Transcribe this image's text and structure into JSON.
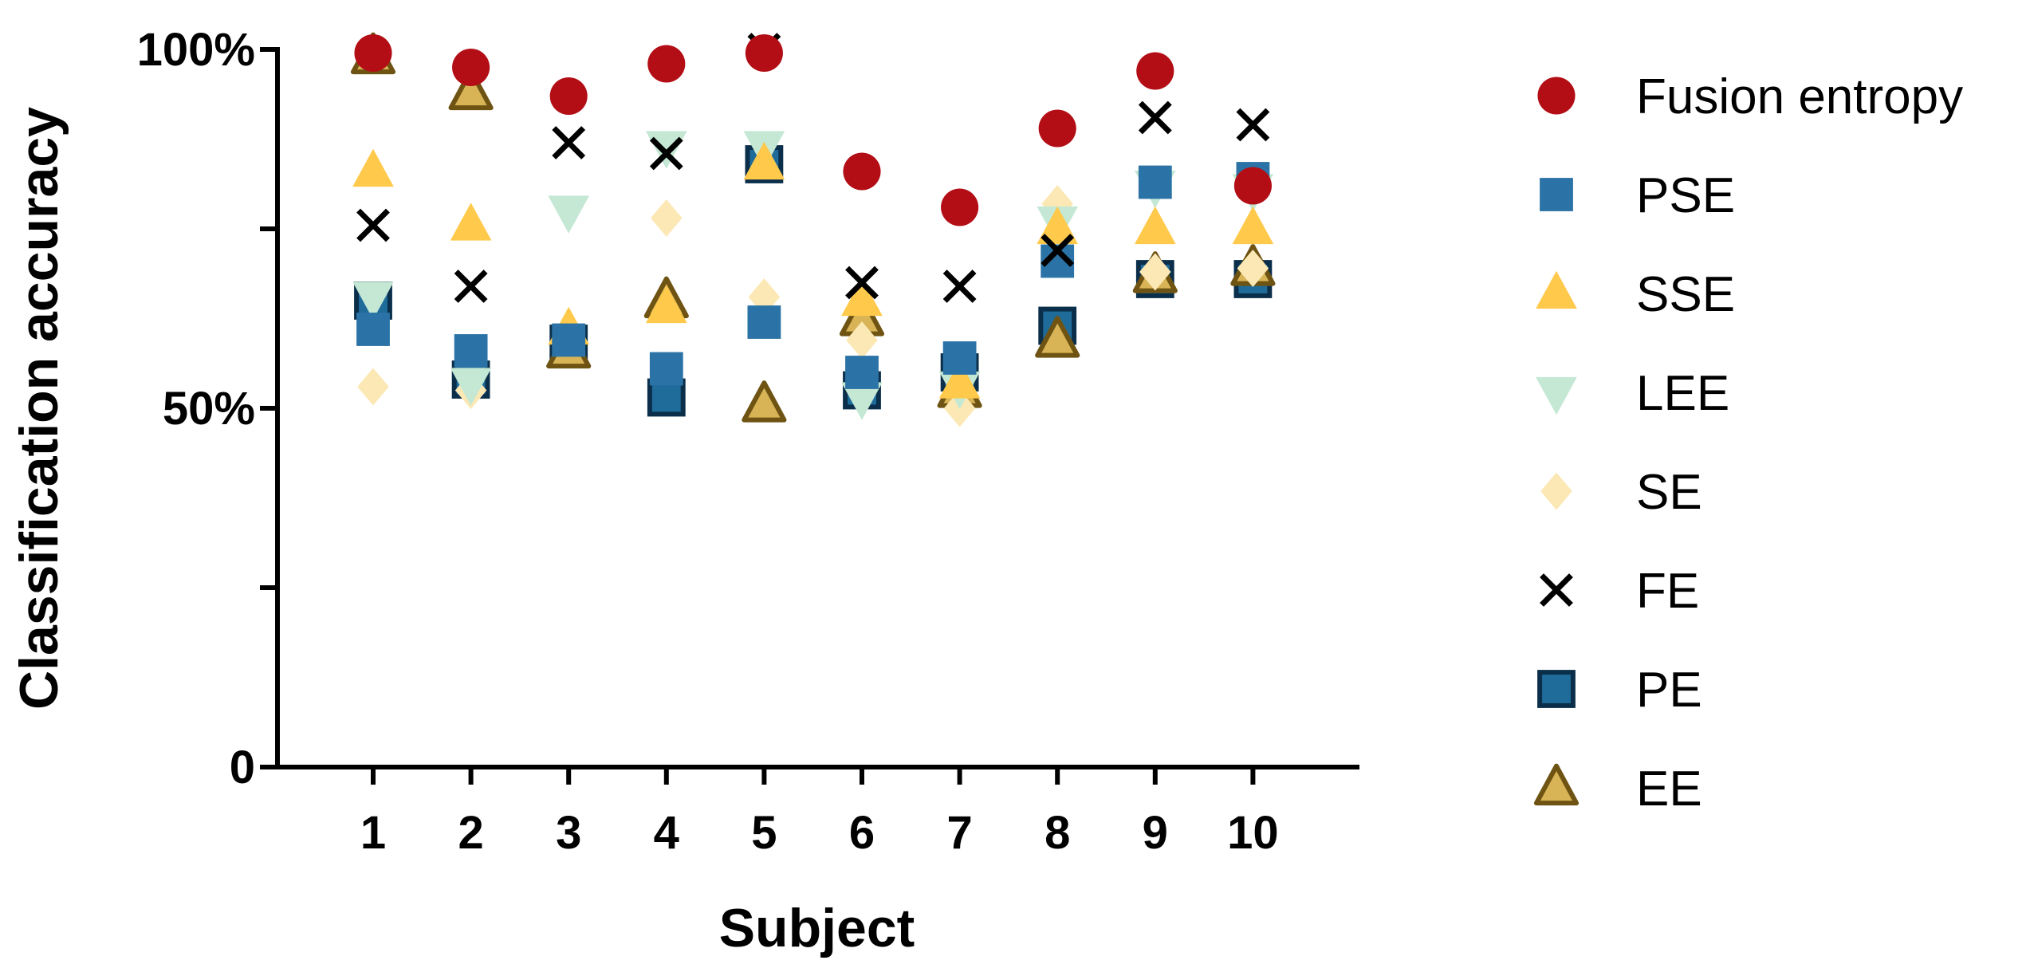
{
  "chart_data": {
    "type": "scatter",
    "xlabel": "Subject",
    "ylabel": "Classification accuracy",
    "categories": [
      "1",
      "2",
      "3",
      "4",
      "5",
      "6",
      "7",
      "8",
      "9",
      "10"
    ],
    "ylim": [
      0,
      100
    ],
    "y_ticks": [
      {
        "value": 0,
        "label": "0"
      },
      {
        "value": 25,
        "label": ""
      },
      {
        "value": 50,
        "label": "50%"
      },
      {
        "value": 75,
        "label": ""
      },
      {
        "value": 100,
        "label": "100%"
      }
    ],
    "grid": false,
    "legend_position": "right",
    "series": [
      {
        "name": "PE",
        "marker": "square-outlined",
        "color": "#1f6c9b",
        "edge": "#0b2f4a",
        "values": [
          65,
          54,
          59,
          51.5,
          84,
          52.5,
          55,
          61.5,
          68,
          68
        ]
      },
      {
        "name": "EE",
        "marker": "triangle-up-outlined",
        "color": "#d8b456",
        "edge": "#6e5313",
        "values": [
          99,
          94,
          58,
          65,
          50.5,
          62.5,
          52.5,
          59.5,
          68.5,
          69.5
        ]
      },
      {
        "name": "SE",
        "marker": "diamond",
        "color": "#fce8b4",
        "edge": "#fce8b4",
        "values": [
          53,
          52.5,
          60,
          76.5,
          65.5,
          59.5,
          50,
          78.5,
          69,
          69.5
        ]
      },
      {
        "name": "LEE",
        "marker": "triangle-down",
        "color": "#c4e8d4",
        "edge": "#c4e8d4",
        "values": [
          65.5,
          53.5,
          77.5,
          86.5,
          86.5,
          51.5,
          53,
          76,
          81,
          80.5
        ]
      },
      {
        "name": "SSE",
        "marker": "triangle-up",
        "color": "#ffc94b",
        "edge": "#ffc94b",
        "values": [
          83,
          75.5,
          61,
          64,
          84,
          65,
          53.5,
          75,
          75,
          75
        ]
      },
      {
        "name": "PSE",
        "marker": "square",
        "color": "#2b73a6",
        "edge": "#2b73a6",
        "values": [
          61,
          58,
          59.5,
          55.5,
          62,
          55,
          57,
          70.5,
          81.5,
          82
        ]
      },
      {
        "name": "FE",
        "marker": "x",
        "color": "#000000",
        "edge": "#000000",
        "values": [
          75.5,
          67,
          87,
          85.5,
          100,
          67.5,
          67,
          72,
          90.5,
          89.5
        ]
      },
      {
        "name": "Fusion entropy",
        "marker": "circle",
        "color": "#b30e16",
        "edge": "#b30e16",
        "values": [
          99.5,
          97.5,
          93.5,
          98,
          99.5,
          83,
          78,
          89,
          97,
          81
        ]
      }
    ],
    "legend_order": [
      "Fusion entropy",
      "PSE",
      "SSE",
      "LEE",
      "SE",
      "FE",
      "PE",
      "EE"
    ]
  }
}
